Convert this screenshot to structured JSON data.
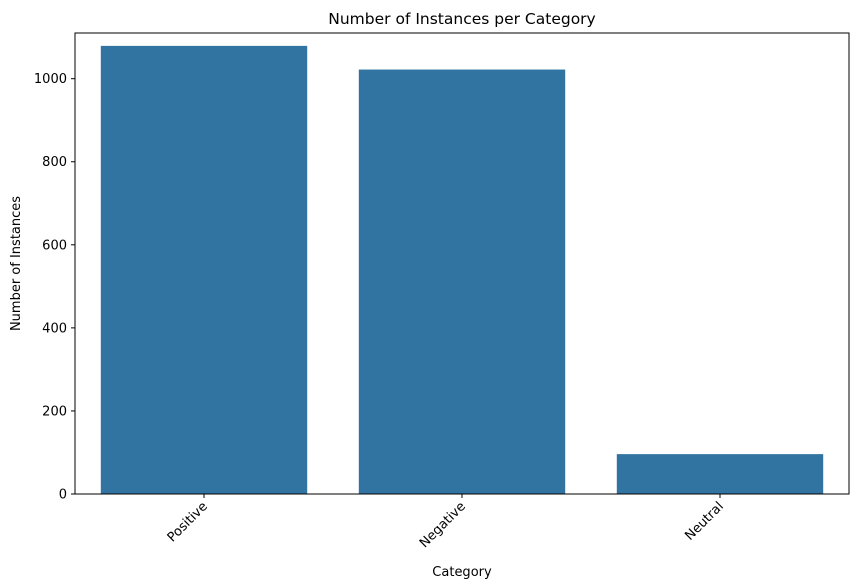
{
  "chart_data": {
    "type": "bar",
    "title": "Number of Instances per Category",
    "xlabel": "Category",
    "ylabel": "Number of Instances",
    "categories": [
      "Positive",
      "Negative",
      "Neutral"
    ],
    "values": [
      1079,
      1022,
      96
    ],
    "ylim": [
      0,
      1110
    ],
    "yticks": [
      0,
      200,
      400,
      600,
      800,
      1000
    ],
    "x_tick_rotation_deg": 45,
    "grid": false,
    "bar_color": "#3274a1"
  }
}
